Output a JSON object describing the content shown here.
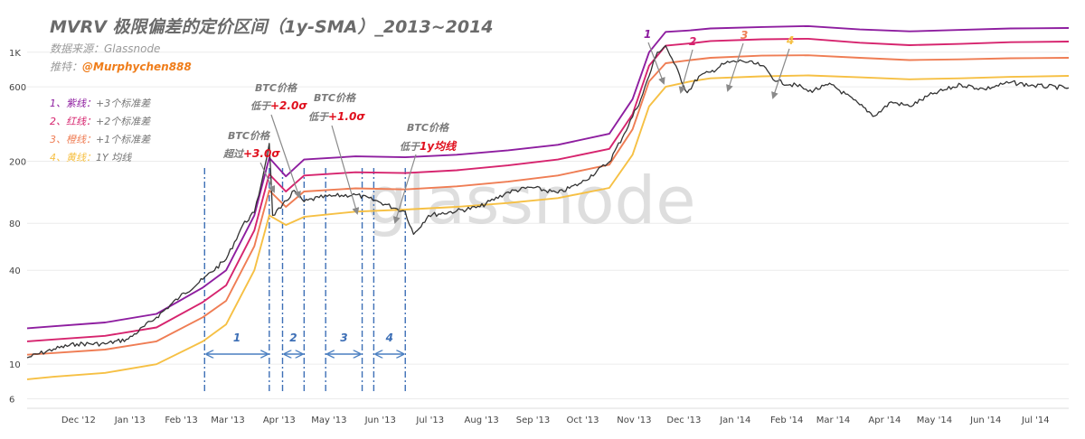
{
  "header": {
    "title": "MVRV 极限偏差的定价区间（1y-SMA）_2013~2014",
    "source": "数据来源：Glassnode",
    "recommend_label": "推特：",
    "recommend_handle": "@Murphychen888"
  },
  "watermark": "glassnode",
  "legend": [
    {
      "prefix": "1、",
      "name": "紫线：",
      "desc": "+3个标准差",
      "color": "#8e1ea0"
    },
    {
      "prefix": "2、",
      "name": "红线：",
      "desc": "+2个标准差",
      "color": "#d6246e"
    },
    {
      "prefix": "3、",
      "name": "橙线：",
      "desc": "+1个标准差",
      "color": "#ef7d54"
    },
    {
      "prefix": "4、",
      "name": "黄线：",
      "desc": "1Y 均线",
      "color": "#f6c044"
    }
  ],
  "annotations": [
    {
      "line1": "BTC价格",
      "prefix": "超过",
      "value": "+3.0σ"
    },
    {
      "line1": "BTC价格",
      "prefix": "低于",
      "value": "+2.0σ"
    },
    {
      "line1": "BTC价格",
      "prefix": "低于",
      "value": "+1.0σ"
    },
    {
      "line1": "BTC价格",
      "prefix": "低于",
      "value": "1y均线"
    }
  ],
  "phase_labels": [
    "1",
    "2",
    "3",
    "4"
  ],
  "top_markers": [
    {
      "label": "1",
      "color": "#8e1ea0"
    },
    {
      "label": "2",
      "color": "#d6246e"
    },
    {
      "label": "3",
      "color": "#ef7d54"
    },
    {
      "label": "4",
      "color": "#f6c044"
    }
  ],
  "chart_data": {
    "type": "line",
    "title": "MVRV 极限偏差的定价区间（1y-SMA）_2013~2014",
    "y_scale": "log",
    "y_ticks": [
      "1K",
      "600",
      "200",
      "80",
      "40",
      "10",
      "6"
    ],
    "y_tick_values": [
      1000,
      600,
      200,
      80,
      40,
      10,
      6
    ],
    "x_ticks": [
      "Dec '12",
      "Jan '13",
      "Feb '13",
      "Mar '13",
      "Apr '13",
      "May '13",
      "Jun '13",
      "Jul '13",
      "Aug '13",
      "Sep '13",
      "Oct '13",
      "Nov '13",
      "Dec '13",
      "Jan '14",
      "Feb '14",
      "Mar '14",
      "Apr '14",
      "May '14",
      "Jun '14",
      "Jul '14"
    ],
    "x_range": [
      "2012-11-15",
      "2014-08-05"
    ],
    "ylim": [
      5.5,
      1700
    ],
    "series": [
      {
        "name": "+3个标准差",
        "color": "#8e1ea0",
        "x": [
          "2012-11-15",
          "2012-12-01",
          "2013-01-01",
          "2013-02-01",
          "2013-03-01",
          "2013-03-15",
          "2013-04-01",
          "2013-04-10",
          "2013-04-20",
          "2013-05-01",
          "2013-06-01",
          "2013-07-01",
          "2013-08-01",
          "2013-09-01",
          "2013-10-01",
          "2013-11-01",
          "2013-11-15",
          "2013-11-25",
          "2013-12-05",
          "2013-12-20",
          "2014-01-01",
          "2014-02-01",
          "2014-03-01",
          "2014-04-01",
          "2014-05-01",
          "2014-06-01",
          "2014-07-01",
          "2014-08-05"
        ],
        "values": [
          17,
          17.5,
          18.5,
          21,
          31,
          40,
          90,
          210,
          160,
          205,
          215,
          212,
          220,
          235,
          255,
          300,
          500,
          1000,
          1350,
          1380,
          1420,
          1450,
          1470,
          1400,
          1360,
          1390,
          1420,
          1430
        ]
      },
      {
        "name": "+2个标准差",
        "color": "#d6246e",
        "x": [
          "2012-11-15",
          "2012-12-01",
          "2013-01-01",
          "2013-02-01",
          "2013-03-01",
          "2013-03-15",
          "2013-04-01",
          "2013-04-10",
          "2013-04-20",
          "2013-05-01",
          "2013-06-01",
          "2013-07-01",
          "2013-08-01",
          "2013-09-01",
          "2013-10-01",
          "2013-11-01",
          "2013-11-15",
          "2013-11-25",
          "2013-12-05",
          "2013-12-20",
          "2014-01-01",
          "2014-02-01",
          "2014-03-01",
          "2014-04-01",
          "2014-05-01",
          "2014-06-01",
          "2014-07-01",
          "2014-08-05"
        ],
        "values": [
          14,
          14.4,
          15.2,
          17.2,
          25,
          32,
          72,
          165,
          128,
          162,
          170,
          168,
          175,
          188,
          205,
          240,
          400,
          820,
          1100,
          1140,
          1180,
          1210,
          1220,
          1150,
          1110,
          1130,
          1160,
          1170
        ]
      },
      {
        "name": "+1个标准差",
        "color": "#ef7d54",
        "x": [
          "2012-11-15",
          "2012-12-01",
          "2013-01-01",
          "2013-02-01",
          "2013-03-01",
          "2013-03-15",
          "2013-04-01",
          "2013-04-10",
          "2013-04-20",
          "2013-05-01",
          "2013-06-01",
          "2013-07-01",
          "2013-08-01",
          "2013-09-01",
          "2013-10-01",
          "2013-11-01",
          "2013-11-15",
          "2013-11-25",
          "2013-12-05",
          "2013-12-20",
          "2014-01-01",
          "2014-02-01",
          "2014-03-01",
          "2014-04-01",
          "2014-05-01",
          "2014-06-01",
          "2014-07-01",
          "2014-08-05"
        ],
        "values": [
          11.5,
          11.8,
          12.4,
          14,
          20,
          25.5,
          57,
          130,
          102,
          128,
          134,
          132,
          138,
          148,
          162,
          190,
          320,
          650,
          850,
          890,
          920,
          950,
          955,
          920,
          890,
          900,
          915,
          920
        ]
      },
      {
        "name": "1Y 均线",
        "color": "#f6c044",
        "x": [
          "2012-11-15",
          "2012-12-01",
          "2013-01-01",
          "2013-02-01",
          "2013-03-01",
          "2013-03-15",
          "2013-04-01",
          "2013-04-10",
          "2013-04-20",
          "2013-05-01",
          "2013-06-01",
          "2013-07-01",
          "2013-08-01",
          "2013-09-01",
          "2013-10-01",
          "2013-11-01",
          "2013-11-15",
          "2013-11-25",
          "2013-12-05",
          "2013-12-20",
          "2014-01-01",
          "2014-02-01",
          "2014-03-01",
          "2014-04-01",
          "2014-05-01",
          "2014-06-01",
          "2014-07-01",
          "2014-08-05"
        ],
        "values": [
          8,
          8.3,
          8.8,
          10,
          14,
          18,
          40,
          90,
          78,
          88,
          95,
          98,
          102,
          108,
          116,
          135,
          220,
          450,
          600,
          650,
          680,
          700,
          710,
          690,
          670,
          680,
          695,
          705
        ]
      },
      {
        "name": "BTC价格",
        "color": "#333333",
        "x": [
          "2012-11-15",
          "2012-12-01",
          "2012-12-15",
          "2013-01-01",
          "2013-01-15",
          "2013-02-01",
          "2013-02-15",
          "2013-03-01",
          "2013-03-15",
          "2013-03-25",
          "2013-04-01",
          "2013-04-05",
          "2013-04-10",
          "2013-04-12",
          "2013-04-17",
          "2013-04-25",
          "2013-05-01",
          "2013-05-10",
          "2013-05-20",
          "2013-06-01",
          "2013-06-15",
          "2013-06-25",
          "2013-07-01",
          "2013-07-06",
          "2013-07-15",
          "2013-08-01",
          "2013-08-15",
          "2013-09-01",
          "2013-09-15",
          "2013-10-01",
          "2013-10-15",
          "2013-11-01",
          "2013-11-10",
          "2013-11-20",
          "2013-11-30",
          "2013-12-05",
          "2013-12-10",
          "2013-12-18",
          "2013-12-25",
          "2014-01-01",
          "2014-01-10",
          "2014-01-20",
          "2014-02-01",
          "2014-02-10",
          "2014-02-25",
          "2014-03-01",
          "2014-03-15",
          "2014-04-01",
          "2014-04-10",
          "2014-04-20",
          "2014-05-01",
          "2014-05-15",
          "2014-06-01",
          "2014-06-15",
          "2014-07-01",
          "2014-07-15",
          "2014-08-05"
        ],
        "values": [
          11,
          12.5,
          13.5,
          13.5,
          14.5,
          20,
          27,
          35,
          47,
          78,
          94,
          140,
          260,
          90,
          100,
          130,
          110,
          117,
          120,
          122,
          110,
          100,
          95,
          68,
          90,
          96,
          102,
          127,
          136,
          125,
          145,
          198,
          300,
          500,
          1000,
          1100,
          850,
          550,
          700,
          745,
          850,
          880,
          820,
          650,
          600,
          560,
          620,
          460,
          390,
          480,
          450,
          540,
          620,
          580,
          640,
          610,
          590
        ]
      }
    ]
  }
}
